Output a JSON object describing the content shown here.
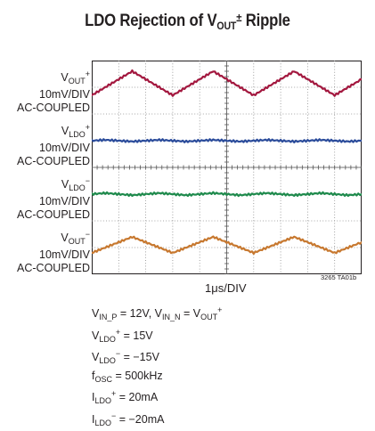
{
  "chart_data": {
    "type": "line",
    "title": {
      "base": "LDO Rejection of V",
      "sub": "OUT",
      "sup": "±",
      "tail": " Ripple"
    },
    "x_axis_label": "1μs/DIV",
    "figure_id": "3265 TA01b",
    "x_divisions": 10,
    "y_divisions": 8,
    "grid": true,
    "x": [
      0,
      0.5,
      1,
      1.5,
      2,
      2.5,
      3,
      3.5,
      4,
      4.5,
      5,
      5.5,
      6,
      6.5,
      7,
      7.5,
      8,
      8.5,
      9,
      9.5,
      10
    ],
    "series": [
      {
        "label": {
          "main": "V",
          "sub": "OUT",
          "sup": "+"
        },
        "scale": "10mV/DIV",
        "coupling": "AC-COUPLED",
        "color": "#a3183f",
        "baseline_div": 7.0,
        "y_mV": [
          -3,
          0,
          3,
          6,
          3,
          0,
          -3,
          0,
          3,
          6,
          3,
          0,
          -3,
          0,
          3,
          6,
          3,
          0,
          -3,
          0,
          3
        ]
      },
      {
        "label": {
          "main": "V",
          "sub": "LDO",
          "sup": "+"
        },
        "scale": "10mV/DIV",
        "coupling": "AC-COUPLED",
        "color": "#2b4c9b",
        "baseline_div": 5.0,
        "y_mV": [
          0,
          0.3,
          0,
          -0.3,
          0,
          0.3,
          0,
          -0.3,
          0,
          0.3,
          0,
          -0.3,
          0,
          0.3,
          0,
          -0.3,
          0,
          0.3,
          0,
          -0.3,
          0
        ]
      },
      {
        "label": {
          "main": "V",
          "sub": "LDO",
          "sup": "−"
        },
        "scale": "10mV/DIV",
        "coupling": "AC-COUPLED",
        "color": "#1e8a4c",
        "baseline_div": 3.0,
        "y_mV": [
          0,
          0.4,
          0,
          -0.4,
          0,
          0.4,
          0,
          -0.4,
          0,
          0.4,
          0,
          -0.4,
          0,
          0.4,
          0,
          -0.4,
          0,
          0.4,
          0,
          -0.4,
          0
        ]
      },
      {
        "label": {
          "main": "V",
          "sub": "OUT",
          "sup": "−"
        },
        "scale": "10mV/DIV",
        "coupling": "AC-COUPLED",
        "color": "#c7782f",
        "baseline_div": 1.0,
        "y_mV": [
          -2,
          0,
          2,
          4,
          2,
          0,
          -2,
          0,
          2,
          4,
          2,
          0,
          -2,
          0,
          2,
          4,
          2,
          0,
          -2,
          0,
          2
        ]
      }
    ],
    "conditions": [
      {
        "parts": [
          {
            "t": "V"
          },
          {
            "sub": "IN_P"
          },
          {
            "t": " = 12V, V"
          },
          {
            "sub": "IN_N"
          },
          {
            "t": " = V"
          },
          {
            "sub": "OUT"
          },
          {
            "sup": "+"
          }
        ]
      },
      {
        "parts": [
          {
            "t": "V"
          },
          {
            "sub": "LDO"
          },
          {
            "sup": "+"
          },
          {
            "t": " = 15V"
          }
        ]
      },
      {
        "parts": [
          {
            "t": "V"
          },
          {
            "sub": "LDO"
          },
          {
            "sup": "−"
          },
          {
            "t": " = −15V"
          }
        ]
      },
      {
        "parts": [
          {
            "t": "f"
          },
          {
            "sub": "OSC"
          },
          {
            "t": " = 500kHz"
          }
        ]
      },
      {
        "parts": [
          {
            "t": "I"
          },
          {
            "sub": "LDO"
          },
          {
            "sup": "+"
          },
          {
            "t": " = 20mA"
          }
        ]
      },
      {
        "parts": [
          {
            "t": "I"
          },
          {
            "sub": "LDO"
          },
          {
            "sup": "−"
          },
          {
            "t": " = −20mA"
          }
        ]
      }
    ]
  }
}
